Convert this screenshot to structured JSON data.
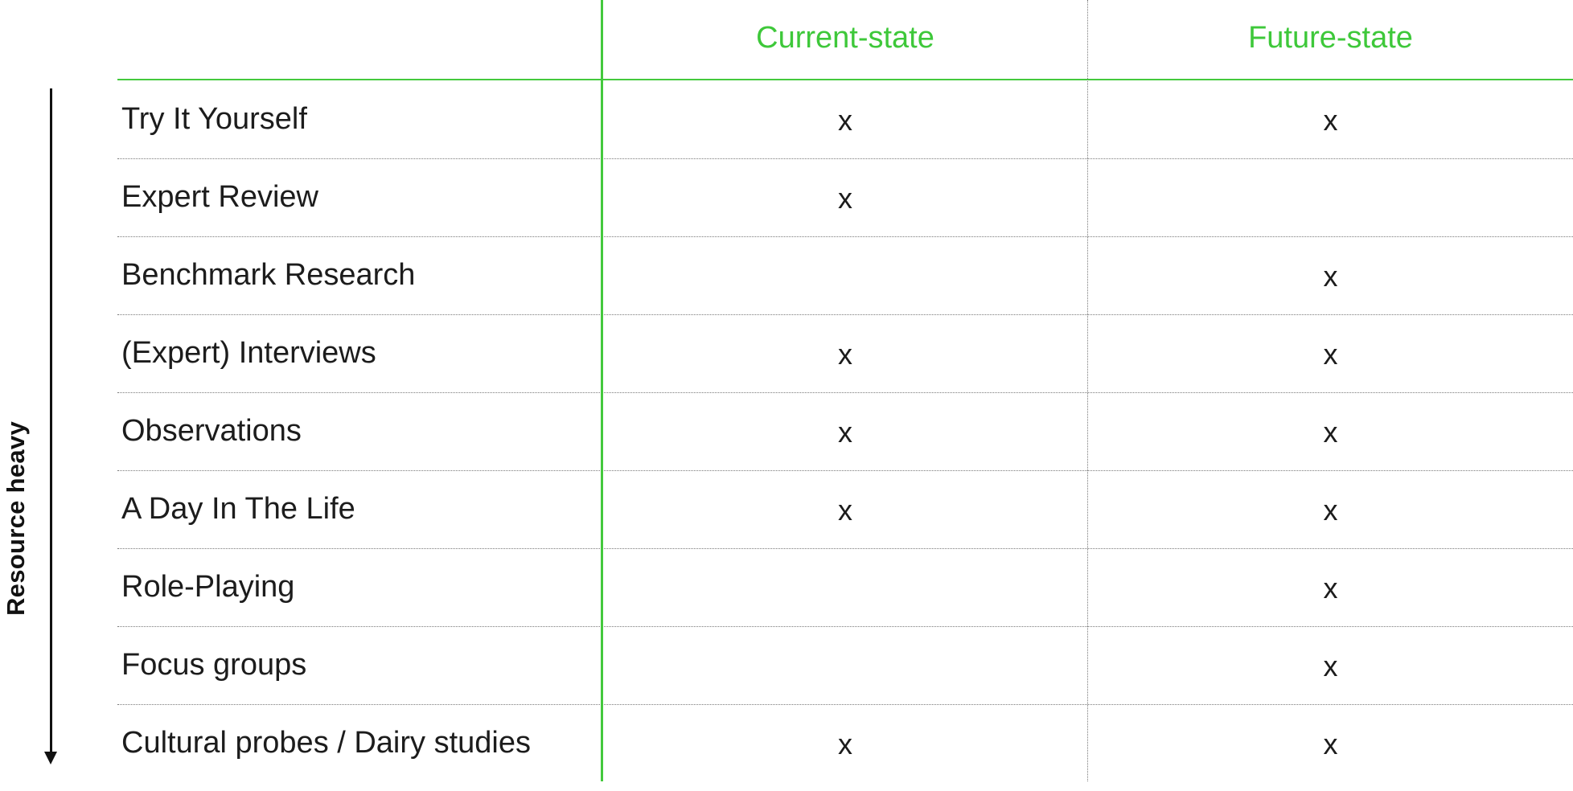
{
  "axis": {
    "label": "Resource heavy"
  },
  "columns": {
    "current": "Current-state",
    "future": "Future-state"
  },
  "rows": [
    {
      "label": "Try It Yourself",
      "current": "x",
      "future": "x"
    },
    {
      "label": "Expert Review",
      "current": "x",
      "future": ""
    },
    {
      "label": "Benchmark Research",
      "current": "",
      "future": "x"
    },
    {
      "label": "(Expert) Interviews",
      "current": "x",
      "future": "x"
    },
    {
      "label": "Observations",
      "current": "x",
      "future": "x"
    },
    {
      "label": "A Day In The Life",
      "current": "x",
      "future": "x"
    },
    {
      "label": "Role-Playing",
      "current": "",
      "future": "x"
    },
    {
      "label": "Focus groups",
      "current": "",
      "future": "x"
    },
    {
      "label": "Cultural probes / Dairy studies",
      "current": "x",
      "future": "x"
    }
  ],
  "colors": {
    "accent_green": "#3ec83a",
    "text": "#1c1c1c"
  }
}
